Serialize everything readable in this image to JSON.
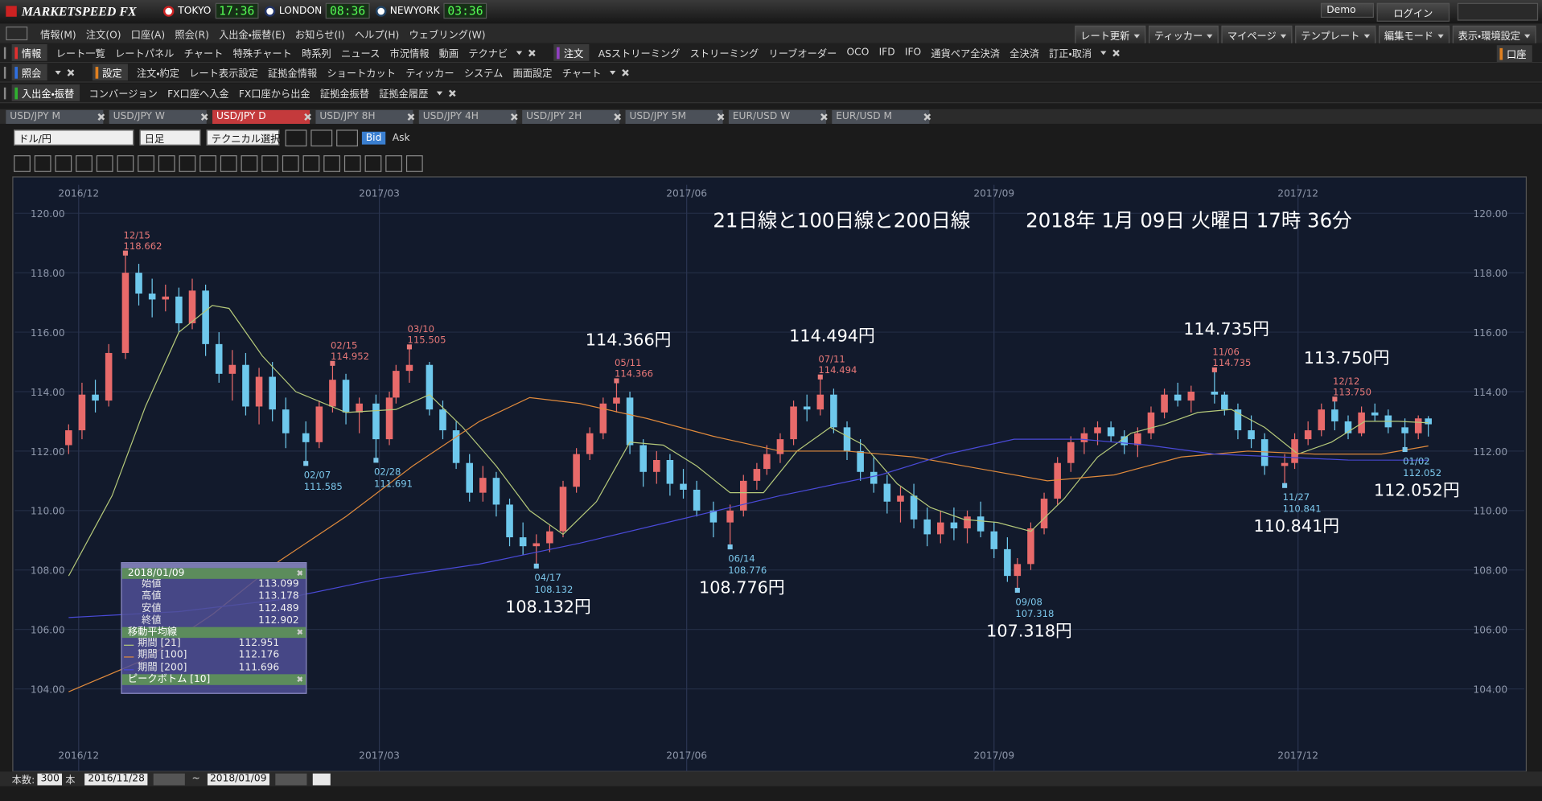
{
  "app": {
    "logo": "MARKETSPEED FX",
    "clocks": [
      {
        "city": "TOKYO",
        "time": "17:36"
      },
      {
        "city": "LONDON",
        "time": "08:36"
      },
      {
        "city": "NEWYORK",
        "time": "03:36"
      }
    ],
    "demo": "Demo",
    "login": "ログイン"
  },
  "menu": [
    "情報(M)",
    "注文(O)",
    "口座(A)",
    "照会(R)",
    "入出金・振替(E)",
    "お知らせ(I)",
    "ヘルプ(H)",
    "ウェブリング(W)"
  ],
  "top_tools": [
    "レート更新",
    "ティッカー",
    "マイページ",
    "テンプレート",
    "編集モード",
    "表示・環境設定"
  ],
  "toolbar": [
    {
      "groups": [
        {
          "color": "#e03030",
          "items": [
            "情報",
            "レート一覧",
            "レートパネル",
            "チャート",
            "特殊チャート",
            "時系列",
            "ニュース",
            "市況情報",
            "動画",
            "テクナビ"
          ]
        },
        {
          "color": "#9040c0",
          "items": [
            "注文",
            "ASストリーミング",
            "ストリーミング",
            "リーブオーダー",
            "OCO",
            "IFD",
            "IFO",
            "通貨ペア全決済",
            "全決済",
            "訂正・取消"
          ]
        }
      ],
      "right": "口座"
    },
    {
      "groups": [
        {
          "color": "#3070e0",
          "items": [
            "照会"
          ]
        },
        {
          "color": "#e08020",
          "items": [
            "設定",
            "注文・約定",
            "レート表示設定",
            "証拠金情報",
            "ショートカット",
            "ティッカー",
            "システム",
            "画面設定",
            "チャート"
          ]
        }
      ]
    },
    {
      "groups": [
        {
          "color": "#30b030",
          "items": [
            "入出金・振替",
            "コンバージョン",
            "FX口座へ入金",
            "FX口座から出金",
            "証拠金振替",
            "証拠金履歴"
          ]
        }
      ]
    }
  ],
  "tabs": [
    "USD/JPY M",
    "USD/JPY W",
    "USD/JPY D",
    "USD/JPY 8H",
    "USD/JPY 4H",
    "USD/JPY 2H",
    "USD/JPY 5M",
    "EUR/USD W",
    "EUR/USD M"
  ],
  "active_tab": 2,
  "controls": {
    "pair": "ドル/円",
    "period": "日足",
    "technical": "テクニカル選択",
    "bid": "Bid",
    "ask": "Ask"
  },
  "chart_data": {
    "type": "candlestick",
    "title": "21日線と100日線と200日線",
    "subtitle": "2018年 1月 09日 火曜日 17時 36分",
    "xlim": [
      -19.13,
      432.73
    ],
    "ylim": [
      101.22,
      120.96
    ],
    "xticks": [
      {
        "value": 0,
        "label": "2016/12"
      },
      {
        "value": 90,
        "label": "2017/03"
      },
      {
        "value": 182,
        "label": "2017/06"
      },
      {
        "value": 274,
        "label": "2017/09"
      },
      {
        "value": 365,
        "label": "2017/12"
      }
    ],
    "yticks": [
      {
        "value": 104,
        "label": "104.00"
      },
      {
        "value": 106,
        "label": "106.00"
      },
      {
        "value": 108,
        "label": "108.00"
      },
      {
        "value": 110,
        "label": "110.00"
      },
      {
        "value": 112,
        "label": "112.00"
      },
      {
        "value": 114,
        "label": "114.00"
      },
      {
        "value": 116,
        "label": "116.00"
      },
      {
        "value": 118,
        "label": "118.00"
      },
      {
        "value": 120,
        "label": "120.00"
      }
    ],
    "grid": true,
    "up_color": "#e86a6a",
    "down_color": "#6ec8ec",
    "x": [
      -3,
      1,
      5,
      9,
      14,
      18,
      22,
      26,
      30,
      34,
      38,
      42,
      46,
      50,
      54,
      58,
      62,
      68,
      72,
      76,
      80,
      84,
      89,
      93,
      95,
      99,
      105,
      109,
      113,
      117,
      121,
      125,
      129,
      133,
      137,
      141,
      145,
      149,
      153,
      157,
      161,
      165,
      169,
      173,
      177,
      181,
      185,
      190,
      195,
      199,
      203,
      206,
      210,
      214,
      218,
      222,
      226,
      230,
      234,
      238,
      242,
      246,
      250,
      254,
      258,
      262,
      266,
      270,
      274,
      278,
      281,
      285,
      289,
      293,
      297,
      301,
      305,
      309,
      313,
      317,
      321,
      325,
      329,
      333,
      340,
      343,
      347,
      351,
      355,
      361,
      364,
      368,
      372,
      376,
      380,
      384,
      388,
      392,
      397,
      401,
      404
    ],
    "open": [
      112.2,
      112.7,
      113.9,
      113.7,
      115.3,
      118.0,
      117.3,
      117.1,
      117.2,
      116.3,
      117.4,
      115.6,
      114.6,
      114.9,
      113.5,
      114.5,
      113.4,
      112.6,
      112.3,
      113.5,
      114.4,
      113.3,
      113.6,
      112.4,
      113.8,
      114.7,
      114.9,
      113.4,
      112.7,
      111.6,
      110.6,
      111.1,
      110.2,
      109.1,
      108.8,
      108.9,
      109.3,
      110.8,
      111.9,
      112.6,
      113.6,
      113.8,
      112.2,
      111.3,
      111.7,
      110.9,
      110.7,
      110.0,
      109.6,
      110.0,
      111.0,
      111.4,
      111.9,
      112.4,
      113.5,
      113.4,
      113.9,
      112.8,
      112.0,
      111.3,
      110.9,
      110.3,
      110.5,
      109.7,
      109.2,
      109.6,
      109.4,
      109.8,
      109.3,
      108.7,
      107.8,
      108.2,
      109.4,
      110.4,
      111.6,
      112.3,
      112.6,
      112.8,
      112.5,
      112.2,
      112.6,
      113.3,
      113.9,
      113.7,
      114.0,
      113.9,
      113.4,
      112.7,
      112.4,
      111.5,
      111.6,
      112.4,
      112.7,
      113.4,
      113.0,
      112.6,
      113.3,
      113.2,
      112.8,
      112.6,
      113.099
    ],
    "high": [
      112.9,
      114.3,
      114.4,
      115.6,
      118.662,
      118.3,
      117.8,
      117.6,
      117.5,
      117.8,
      117.6,
      116.0,
      115.4,
      115.3,
      114.8,
      115.0,
      113.8,
      113.0,
      113.7,
      114.952,
      114.6,
      113.8,
      113.9,
      114.0,
      114.9,
      115.505,
      115.0,
      113.7,
      113.0,
      111.9,
      111.5,
      111.3,
      110.4,
      109.6,
      109.2,
      109.5,
      111.0,
      112.1,
      112.8,
      113.8,
      114.366,
      114.0,
      112.4,
      112.0,
      111.9,
      111.4,
      111.0,
      110.3,
      110.2,
      111.2,
      111.6,
      112.2,
      112.6,
      113.7,
      113.9,
      114.494,
      114.1,
      113.0,
      112.4,
      111.8,
      111.2,
      110.8,
      110.9,
      110.1,
      110.0,
      110.1,
      110.0,
      110.3,
      109.6,
      109.1,
      108.4,
      109.6,
      110.6,
      111.8,
      112.5,
      112.8,
      113.0,
      113.0,
      112.7,
      112.8,
      113.5,
      114.1,
      114.3,
      114.2,
      114.735,
      114.0,
      113.6,
      113.2,
      112.6,
      111.9,
      112.6,
      113.0,
      113.6,
      113.75,
      113.2,
      113.5,
      113.6,
      113.4,
      113.1,
      113.2,
      113.178
    ],
    "low": [
      111.9,
      112.4,
      113.3,
      113.5,
      115.1,
      116.9,
      116.5,
      116.7,
      116.0,
      116.1,
      115.2,
      114.3,
      113.7,
      113.2,
      112.9,
      113.0,
      112.1,
      111.585,
      112.1,
      113.3,
      112.9,
      112.6,
      111.691,
      112.2,
      113.6,
      114.3,
      113.2,
      112.4,
      111.4,
      110.3,
      110.3,
      109.8,
      108.8,
      108.5,
      108.132,
      108.6,
      109.1,
      110.6,
      111.7,
      112.4,
      113.3,
      111.9,
      110.8,
      110.9,
      110.5,
      110.4,
      109.8,
      109.1,
      108.776,
      109.8,
      110.7,
      111.2,
      111.6,
      112.2,
      113.0,
      113.2,
      112.6,
      111.7,
      111.0,
      110.6,
      109.9,
      109.6,
      109.4,
      108.8,
      108.9,
      109.0,
      108.9,
      109.1,
      108.4,
      107.6,
      107.318,
      108.0,
      109.2,
      110.2,
      111.3,
      111.9,
      112.2,
      112.3,
      111.9,
      111.8,
      112.4,
      113.1,
      113.5,
      113.3,
      113.6,
      113.2,
      112.4,
      112.1,
      111.2,
      110.841,
      111.4,
      112.2,
      112.5,
      112.7,
      112.4,
      112.5,
      113.0,
      112.6,
      112.052,
      112.4,
      112.489
    ],
    "close": [
      112.7,
      113.9,
      113.7,
      115.3,
      118.0,
      117.3,
      117.1,
      117.2,
      116.3,
      117.4,
      115.6,
      114.6,
      114.9,
      113.5,
      114.5,
      113.4,
      112.6,
      112.3,
      113.5,
      114.4,
      113.3,
      113.6,
      112.4,
      113.8,
      114.7,
      114.9,
      113.4,
      112.7,
      111.6,
      110.6,
      111.1,
      110.2,
      109.1,
      108.8,
      108.9,
      109.3,
      110.8,
      111.9,
      112.6,
      113.6,
      113.8,
      112.2,
      111.3,
      111.7,
      110.9,
      110.7,
      110.0,
      109.6,
      110.0,
      111.0,
      111.4,
      111.9,
      112.4,
      113.5,
      113.4,
      113.9,
      112.8,
      112.0,
      111.3,
      110.9,
      110.3,
      110.5,
      109.7,
      109.2,
      109.6,
      109.4,
      109.8,
      109.3,
      108.7,
      107.8,
      108.2,
      109.4,
      110.4,
      111.6,
      112.3,
      112.6,
      112.8,
      112.5,
      112.2,
      112.6,
      113.3,
      113.9,
      113.7,
      114.0,
      113.9,
      113.4,
      112.7,
      112.4,
      111.5,
      111.6,
      112.4,
      112.7,
      113.4,
      113.0,
      112.6,
      113.3,
      113.2,
      112.8,
      112.6,
      113.1,
      112.902
    ],
    "lines": [
      {
        "color": "#b5c97a",
        "x": [
          -3,
          10,
          20,
          30,
          40,
          45,
          55,
          65,
          80,
          95,
          105,
          115,
          125,
          135,
          145,
          155,
          165,
          175,
          185,
          195,
          205,
          215,
          225,
          235,
          245,
          255,
          265,
          275,
          285,
          295,
          305,
          315,
          325,
          335,
          345,
          355,
          365,
          375,
          385,
          395,
          404
        ],
        "values": [
          107.8,
          110.5,
          113.5,
          116.0,
          116.9,
          116.8,
          115.2,
          114.0,
          113.3,
          113.4,
          113.9,
          112.8,
          111.5,
          110.0,
          109.2,
          110.3,
          112.3,
          112.2,
          111.5,
          110.6,
          110.6,
          112.0,
          112.8,
          112.2,
          110.9,
          110.1,
          109.7,
          109.6,
          109.3,
          110.4,
          111.8,
          112.6,
          112.9,
          113.3,
          113.4,
          112.8,
          111.9,
          112.3,
          113.0,
          113.0,
          112.951
        ]
      },
      {
        "color": "#e08a3c",
        "x": [
          -3,
          20,
          40,
          60,
          80,
          100,
          120,
          135,
          150,
          170,
          190,
          210,
          230,
          250,
          270,
          290,
          310,
          330,
          350,
          370,
          390,
          404
        ],
        "values": [
          103.9,
          105.0,
          106.5,
          108.3,
          109.8,
          111.5,
          113.0,
          113.8,
          113.6,
          113.1,
          112.5,
          112.0,
          112.0,
          111.8,
          111.4,
          111.0,
          111.2,
          111.8,
          112.0,
          111.9,
          111.9,
          112.176
        ]
      },
      {
        "color": "#4a4ad8",
        "x": [
          -3,
          30,
          60,
          90,
          120,
          150,
          180,
          210,
          240,
          260,
          280,
          300,
          320,
          340,
          360,
          380,
          404
        ],
        "values": [
          106.4,
          106.6,
          107.0,
          107.7,
          108.2,
          108.9,
          109.7,
          110.5,
          111.2,
          111.9,
          112.4,
          112.4,
          112.2,
          111.9,
          111.8,
          111.7,
          111.696
        ]
      }
    ],
    "peaks": [
      {
        "kind": "high",
        "x": 14,
        "date": "12/15",
        "value": 118.662,
        "label": "118.662"
      },
      {
        "kind": "low",
        "x": 68,
        "date": "02/07",
        "value": 111.585,
        "label": "111.585"
      },
      {
        "kind": "high",
        "x": 76,
        "date": "02/15",
        "value": 114.952,
        "label": "114.952"
      },
      {
        "kind": "low",
        "x": 89,
        "date": "02/28",
        "value": 111.691,
        "label": "111.691"
      },
      {
        "kind": "high",
        "x": 99,
        "date": "03/10",
        "value": 115.505,
        "label": "115.505"
      },
      {
        "kind": "low",
        "x": 137,
        "date": "04/17",
        "value": 108.132,
        "label": "108.132",
        "callout": "108.132円"
      },
      {
        "kind": "high",
        "x": 161,
        "date": "05/11",
        "value": 114.366,
        "label": "114.366",
        "callout": "114.366円"
      },
      {
        "kind": "low",
        "x": 195,
        "date": "06/14",
        "value": 108.776,
        "label": "108.776",
        "callout": "108.776円"
      },
      {
        "kind": "high",
        "x": 222,
        "date": "07/11",
        "value": 114.494,
        "label": "114.494",
        "callout": "114.494円"
      },
      {
        "kind": "low",
        "x": 281,
        "date": "09/08",
        "value": 107.318,
        "label": "107.318",
        "callout": "107.318円"
      },
      {
        "kind": "high",
        "x": 340,
        "date": "11/06",
        "value": 114.735,
        "label": "114.735",
        "callout": "114.735円"
      },
      {
        "kind": "low",
        "x": 361,
        "date": "11/27",
        "value": 110.841,
        "label": "110.841",
        "callout": "110.841円"
      },
      {
        "kind": "high",
        "x": 376,
        "date": "12/12",
        "value": 113.75,
        "label": "113.750",
        "callout": "113.750円"
      },
      {
        "kind": "low",
        "x": 397,
        "date": "01/02",
        "value": 112.052,
        "label": "112.052",
        "callout": "112.052円"
      }
    ]
  },
  "info_panel": {
    "date": "2018/01/09",
    "rows": [
      [
        "始値",
        "113.099"
      ],
      [
        "高値",
        "113.178"
      ],
      [
        "安値",
        "112.489"
      ],
      [
        "終値",
        "112.902"
      ]
    ],
    "ma_title": "移動平均線",
    "ma_rows": [
      {
        "label": "期間 [21]",
        "value": "112.951",
        "color": "#b5c97a"
      },
      {
        "label": "期間 [100]",
        "value": "112.176",
        "color": "#e08a3c"
      },
      {
        "label": "期間 [200]",
        "value": "111.696",
        "color": "#4a4ad8"
      }
    ],
    "peak_title": "ピークボトム [10]"
  },
  "bottom_bar": {
    "count_label": "本数:",
    "count": "300",
    "unit": "本",
    "from": "2016/11/28",
    "sep": "~",
    "to": "2018/01/09"
  }
}
